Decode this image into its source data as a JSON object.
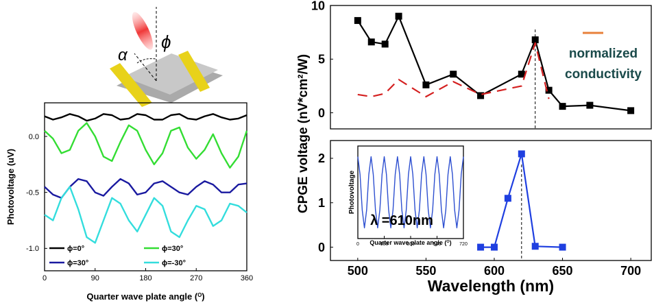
{
  "schematic": {
    "alpha": "α",
    "phi": "ϕ"
  },
  "chart_data": [
    {
      "type": "line",
      "ylabel": "Photovoltage (uV)",
      "xlabel": [
        "Quarter wave plate angle (",
        "O",
        ")"
      ],
      "xlim": [
        0,
        360
      ],
      "xticks": [
        0,
        90,
        180,
        270,
        360
      ],
      "ylim": [
        -1.2,
        0.3
      ],
      "yticks": [
        {
          "value": 0,
          "label": "0.0"
        },
        {
          "value": -0.5,
          "label": "-0.5"
        },
        {
          "value": -1,
          "label": "-1.0"
        }
      ],
      "x": [
        0,
        15,
        30,
        45,
        60,
        75,
        90,
        105,
        120,
        135,
        150,
        165,
        180,
        195,
        210,
        225,
        240,
        255,
        270,
        285,
        300,
        315,
        330,
        345,
        360
      ],
      "series": [
        {
          "name": "ϕ=0°",
          "color": "#000000",
          "values": [
            0.18,
            0.15,
            0.17,
            0.2,
            0.18,
            0.14,
            0.16,
            0.2,
            0.19,
            0.15,
            0.16,
            0.2,
            0.19,
            0.15,
            0.15,
            0.19,
            0.2,
            0.16,
            0.15,
            0.18,
            0.2,
            0.17,
            0.15,
            0.16,
            0.19
          ]
        },
        {
          "name": "ϕ=30°",
          "color": "#33dd33",
          "values": [
            0.05,
            -0.02,
            -0.15,
            -0.12,
            0.05,
            0.12,
            0.0,
            -0.18,
            -0.22,
            -0.05,
            0.1,
            0.05,
            -0.12,
            -0.25,
            -0.15,
            0.05,
            0.08,
            -0.1,
            -0.2,
            -0.12,
            0.02,
            -0.15,
            -0.28,
            -0.18,
            0.05
          ]
        },
        {
          "name": "ϕ=30°",
          "color": "#1a1aa0",
          "values": [
            -0.45,
            -0.52,
            -0.55,
            -0.45,
            -0.38,
            -0.4,
            -0.5,
            -0.53,
            -0.45,
            -0.38,
            -0.42,
            -0.52,
            -0.5,
            -0.42,
            -0.4,
            -0.45,
            -0.5,
            -0.52,
            -0.45,
            -0.4,
            -0.43,
            -0.5,
            -0.5,
            -0.43,
            -0.42
          ]
        },
        {
          "name": "ϕ=-30°",
          "color": "#33dddd",
          "values": [
            -0.7,
            -0.75,
            -0.55,
            -0.45,
            -0.65,
            -0.9,
            -0.95,
            -0.75,
            -0.55,
            -0.6,
            -0.75,
            -0.85,
            -0.7,
            -0.55,
            -0.62,
            -0.85,
            -0.9,
            -0.75,
            -0.62,
            -0.65,
            -0.8,
            -0.75,
            -0.6,
            -0.62,
            -0.68
          ]
        }
      ]
    },
    {
      "type": "line",
      "ylabel": "CPGE voltage (nV*cm²/W)",
      "xlim": [
        480,
        715
      ],
      "ylim": [
        -1.5,
        10
      ],
      "yticks": [
        0,
        5,
        10
      ],
      "vline": 630,
      "legend": {
        "color": "#e8803a",
        "lines": [
          "normalized",
          "conductivity"
        ]
      },
      "x": [
        500,
        510,
        520,
        530,
        550,
        570,
        590,
        620,
        630,
        640,
        650,
        670,
        700
      ],
      "series": [
        {
          "color": "#000000",
          "marker": "square",
          "linestyle": "solid",
          "values": [
            8.6,
            6.6,
            6.4,
            9.0,
            2.6,
            3.6,
            1.6,
            3.6,
            6.8,
            2.1,
            0.6,
            0.7,
            0.2
          ]
        },
        {
          "color": "#d42020",
          "linestyle": "dashed",
          "values": [
            1.7,
            1.5,
            1.8,
            3.1,
            1.5,
            2.9,
            1.7,
            2.5,
            6.5,
            1.3,
            null,
            null,
            null
          ]
        }
      ]
    },
    {
      "type": "line",
      "xlabel": [
        "Wavelength (nm)"
      ],
      "xlim": [
        480,
        715
      ],
      "xticks": [
        500,
        550,
        600,
        650,
        700
      ],
      "ylim": [
        -0.3,
        2.4
      ],
      "yticks": [
        0,
        1,
        2
      ],
      "vline": 620,
      "x": [
        590,
        600,
        610,
        620,
        630,
        650
      ],
      "series": [
        {
          "color": "#1f3fe0",
          "marker": "square",
          "linestyle": "solid",
          "values": [
            0,
            0,
            1.1,
            2.1,
            0.02,
            0
          ]
        }
      ]
    },
    {
      "type": "line",
      "ylabel": "Photovoltage",
      "xlabel": [
        "Quarter wave plate angle (",
        "O",
        ")"
      ],
      "annotation": "λ =610nm",
      "xlim": [
        0,
        720
      ],
      "xticks": [
        0,
        180,
        360,
        540,
        720
      ],
      "ylim": [
        -1.3,
        1.3
      ],
      "x": [
        0,
        15,
        30,
        45,
        60,
        75,
        90,
        105,
        120,
        135,
        150,
        165,
        180,
        195,
        210,
        225,
        240,
        255,
        270,
        285,
        300,
        315,
        330,
        345,
        360,
        375,
        390,
        405,
        420,
        435,
        450,
        465,
        480,
        495,
        510,
        525,
        540,
        555,
        570,
        585,
        600,
        615,
        630,
        645,
        660,
        675,
        690,
        705,
        720
      ],
      "series": [
        {
          "color": "#2d4fd0",
          "linestyle": "solid",
          "values": [
            1,
            0.5,
            -0.5,
            -1,
            -0.5,
            0.5,
            1,
            0.5,
            -0.5,
            -1,
            -0.5,
            0.5,
            1,
            0.5,
            -0.5,
            -1,
            -0.5,
            0.5,
            1,
            0.5,
            -0.5,
            -1,
            -0.5,
            0.5,
            1,
            0.5,
            -0.5,
            -1,
            -0.5,
            0.5,
            1,
            0.5,
            -0.5,
            -1,
            -0.5,
            0.5,
            1,
            0.5,
            -0.5,
            -1,
            -0.5,
            0.5,
            1,
            0.5,
            -0.5,
            -1,
            -0.5,
            0.5,
            1
          ]
        }
      ]
    }
  ]
}
